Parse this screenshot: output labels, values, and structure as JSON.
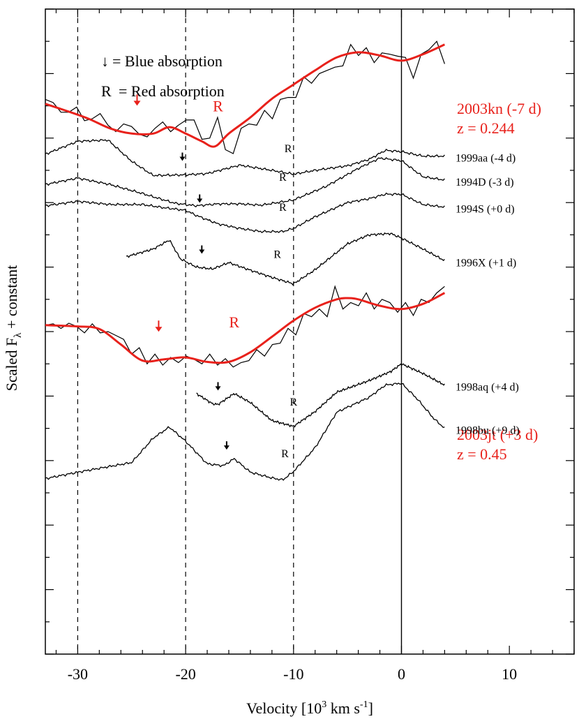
{
  "chart_data": {
    "type": "line",
    "xlabel_prefix": "Velocity  [10",
    "xlabel_exp": "3",
    "xlabel_unit": " km s",
    "xlabel_unit_exp": "-1",
    "xlabel_close": "]",
    "ylabel_prefix": "Scaled F",
    "ylabel_sub": "λ",
    "ylabel_suffix": " + constant",
    "xlim": [
      -33,
      16
    ],
    "x_ticks": [
      -30,
      -20,
      -10,
      0,
      10
    ],
    "x_tick_labels": [
      "-30",
      "-20",
      "-10",
      "0",
      "10"
    ],
    "ylim": [
      0,
      10
    ],
    "vlines_dashed": [
      -30,
      -20,
      -10
    ],
    "vline_solid": 0,
    "legend": {
      "blue_symbol": "↓",
      "blue_text": "= Blue absorption",
      "red_symbol": "R",
      "red_text": "= Red absorption"
    },
    "series": [
      {
        "name": "2003kn (-7 d)",
        "z_label": "z = 0.244",
        "color": "#e8211b",
        "noisy": true,
        "x": [
          -33,
          -31,
          -29,
          -27,
          -25,
          -23,
          -21.5,
          -20,
          -18.5,
          -17.3,
          -16,
          -14,
          -12,
          -10,
          -8,
          -6,
          -4,
          -2,
          0,
          2,
          4
        ],
        "y": [
          8.53,
          8.42,
          8.3,
          8.15,
          8.07,
          8.07,
          8.17,
          8.07,
          7.95,
          7.87,
          8.07,
          8.32,
          8.61,
          8.83,
          9.05,
          9.25,
          9.33,
          9.28,
          9.2,
          9.3,
          9.45
        ],
        "raw": [
          8.6,
          8.55,
          8.4,
          8.4,
          8.48,
          8.27,
          8.3,
          8.38,
          8.2,
          8.1,
          8.22,
          8.18,
          8.06,
          8.02,
          8.15,
          8.25,
          8.1,
          8.2,
          8.28,
          8.28,
          7.98,
          8.0,
          8.32,
          7.82,
          7.76,
          8.15,
          8.22,
          8.2,
          8.43,
          8.3,
          8.6,
          8.63,
          8.63,
          8.95,
          8.85,
          9.0,
          9.05,
          9.1,
          9.12,
          9.45,
          9.28,
          9.4,
          9.17,
          9.32,
          9.3,
          9.27,
          9.25,
          8.93,
          9.3,
          9.37,
          9.5,
          9.15
        ],
        "blue_marker_x": -24.5,
        "red_marker_x": -17
      },
      {
        "name": "1999aa (-4 d)",
        "color": "#000000",
        "x": [
          -33,
          -30,
          -27.2,
          -25,
          -23,
          -20,
          -18,
          -15,
          -12,
          -10,
          -8,
          -5,
          -3,
          -1.5,
          0,
          2,
          4
        ],
        "y": [
          7.75,
          7.95,
          7.97,
          7.64,
          7.42,
          7.43,
          7.45,
          7.58,
          7.5,
          7.44,
          7.5,
          7.57,
          7.67,
          7.81,
          7.79,
          7.72,
          7.72
        ],
        "blue_marker_x": -20.3,
        "red_marker_x": -10.5
      },
      {
        "name": "1994D (-3 d)",
        "color": "#000000",
        "x": [
          -33,
          -30,
          -27,
          -24,
          -21,
          -19,
          -17,
          -15,
          -13,
          -10,
          -7,
          -4,
          -2,
          0,
          2,
          4
        ],
        "y": [
          7.28,
          7.38,
          7.28,
          7.14,
          6.99,
          6.95,
          6.98,
          6.98,
          6.96,
          7.04,
          7.25,
          7.53,
          7.69,
          7.65,
          7.4,
          7.35
        ],
        "red_marker_x": -11
      },
      {
        "name": "1994S (+0 d)",
        "color": "#000000",
        "x": [
          -33,
          -30,
          -27,
          -24,
          -22,
          -20,
          -19,
          -17,
          -15,
          -13,
          -11,
          -10,
          -8,
          -5,
          -3,
          -1.5,
          0,
          2,
          4
        ],
        "y": [
          6.95,
          7.02,
          6.97,
          6.97,
          6.92,
          6.88,
          6.8,
          6.67,
          6.6,
          6.55,
          6.55,
          6.6,
          6.78,
          7.0,
          7.06,
          7.13,
          7.13,
          6.97,
          6.93
        ],
        "blue_marker_x": -18.7,
        "red_marker_x": -11
      },
      {
        "name": "1996X (+1 d)",
        "color": "#000000",
        "x": [
          -25.5,
          -23,
          -21.5,
          -20.5,
          -19,
          -17.5,
          -16,
          -14.5,
          -12,
          -10,
          -8,
          -5,
          -3,
          -1,
          0,
          2,
          4
        ],
        "y": [
          6.16,
          6.28,
          6.42,
          6.13,
          6.0,
          5.97,
          6.07,
          5.98,
          5.84,
          5.74,
          5.96,
          6.36,
          6.5,
          6.52,
          6.45,
          6.28,
          6.1
        ],
        "blue_marker_x": -18.5,
        "red_marker_x": -11.5
      },
      {
        "name": "2003jt (+3 d)",
        "z_label": "z = 0.45",
        "color": "#e8211b",
        "noisy": true,
        "x": [
          -33,
          -30,
          -28,
          -26,
          -24,
          -22,
          -20,
          -18,
          -16,
          -14,
          -12,
          -10,
          -8,
          -6,
          -5,
          -4,
          -2,
          0,
          2,
          4
        ],
        "y": [
          5.1,
          5.08,
          5.04,
          4.8,
          4.55,
          4.57,
          4.6,
          4.53,
          4.53,
          4.68,
          4.92,
          5.17,
          5.37,
          5.5,
          5.52,
          5.5,
          5.4,
          5.35,
          5.43,
          5.6
        ],
        "raw": [
          5.1,
          5.12,
          5.05,
          5.13,
          5.08,
          4.98,
          5.12,
          4.98,
          5.0,
          4.94,
          4.88,
          4.65,
          4.75,
          4.5,
          4.65,
          4.48,
          4.6,
          4.52,
          4.62,
          4.57,
          4.5,
          4.65,
          4.48,
          4.58,
          4.45,
          4.52,
          4.55,
          4.72,
          4.62,
          4.8,
          4.82,
          5.05,
          4.95,
          5.28,
          5.23,
          5.35,
          5.23,
          5.7,
          5.35,
          5.45,
          5.4,
          5.6,
          5.35,
          5.5,
          5.45,
          5.3,
          5.45,
          5.25,
          5.5,
          5.45,
          5.6,
          5.7
        ],
        "blue_marker_x": -22.5,
        "red_marker_x": -15.5
      },
      {
        "name": "1998aq (+4 d)",
        "color": "#000000",
        "x": [
          -19,
          -17.5,
          -17,
          -15.5,
          -14,
          -12,
          -10,
          -8,
          -6,
          -3,
          -1,
          0,
          2,
          4
        ],
        "y": [
          4.04,
          3.88,
          3.87,
          4.04,
          3.9,
          3.62,
          3.53,
          3.76,
          4.06,
          4.24,
          4.38,
          4.5,
          4.35,
          4.17
        ],
        "blue_marker_x": -17,
        "red_marker_x": -10
      },
      {
        "name": "1998bu (+9 d)",
        "color": "#000000",
        "x": [
          -33,
          -30,
          -25,
          -23,
          -21.5,
          -20,
          -18,
          -16.5,
          -15.5,
          -14,
          -12,
          -11,
          -10,
          -8,
          -6,
          -3,
          -1.5,
          0,
          1.5,
          3,
          4
        ],
        "y": [
          2.72,
          2.82,
          2.97,
          3.35,
          3.52,
          3.3,
          2.95,
          2.92,
          3.03,
          2.82,
          2.73,
          2.7,
          2.83,
          3.2,
          3.75,
          3.98,
          4.17,
          4.2,
          3.95,
          3.65,
          3.5
        ],
        "blue_marker_x": -16.2,
        "red_marker_x": -10.8
      }
    ]
  }
}
